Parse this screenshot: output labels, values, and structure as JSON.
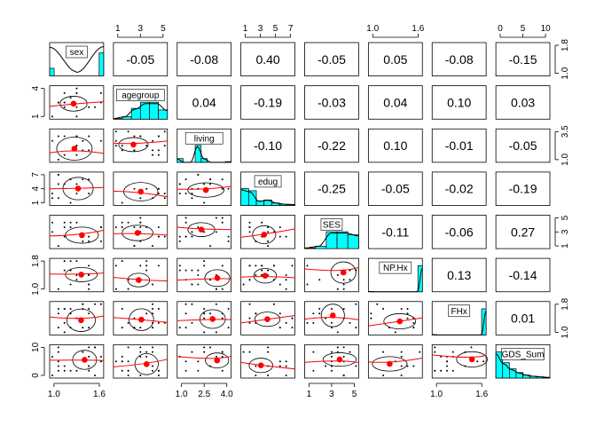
{
  "chart_data": {
    "type": "scatter-matrix",
    "variables": [
      {
        "name": "sex",
        "range": [
          1,
          2
        ],
        "hist": [
          0.25,
          0,
          0,
          0,
          0,
          0,
          0,
          0,
          0,
          0,
          0,
          0.75
        ]
      },
      {
        "name": "agegroup",
        "range": [
          1,
          6
        ],
        "hist": [
          0.02,
          0.08,
          0.35,
          0.55,
          0.55,
          0.3
        ]
      },
      {
        "name": "living",
        "range": [
          1,
          4
        ],
        "hist": [
          0.12,
          0,
          0,
          0.55,
          0.12,
          0,
          0,
          0,
          0.02
        ]
      },
      {
        "name": "edug",
        "range": [
          1,
          7
        ],
        "hist": [
          0.55,
          0.48,
          0.15,
          0.18,
          0.08,
          0.04,
          0.03
        ]
      },
      {
        "name": "SES",
        "range": [
          1,
          5
        ],
        "hist": [
          0.02,
          0.08,
          0.55,
          0.55,
          0.45
        ]
      },
      {
        "name": "NP.Hx",
        "range": [
          1,
          2
        ],
        "hist": [
          0.01,
          0,
          0,
          0,
          0,
          0,
          0,
          0,
          0,
          0,
          0,
          0.85
        ]
      },
      {
        "name": "FHx",
        "range": [
          1,
          2
        ],
        "hist": [
          0.01,
          0,
          0,
          0,
          0,
          0,
          0,
          0,
          0,
          0,
          0,
          0.85
        ]
      },
      {
        "name": "GDS_Sum",
        "range": [
          0,
          15
        ],
        "hist": [
          0.85,
          0.5,
          0.3,
          0.18,
          0.1,
          0.06,
          0.04,
          0.02
        ]
      }
    ],
    "correlations": [
      [
        null,
        -0.05,
        -0.08,
        0.4,
        -0.05,
        0.05,
        -0.08,
        -0.15
      ],
      [
        null,
        null,
        0.04,
        -0.19,
        -0.03,
        0.04,
        0.1,
        0.03
      ],
      [
        null,
        null,
        null,
        -0.1,
        -0.22,
        0.1,
        -0.01,
        -0.05
      ],
      [
        null,
        null,
        null,
        null,
        -0.25,
        -0.05,
        -0.02,
        -0.19
      ],
      [
        null,
        null,
        null,
        null,
        null,
        -0.11,
        -0.06,
        0.27
      ],
      [
        null,
        null,
        null,
        null,
        null,
        null,
        0.13,
        -0.14
      ],
      [
        null,
        null,
        null,
        null,
        null,
        null,
        null,
        0.01
      ]
    ],
    "correlation_labels": [
      [
        "",
        "-0.05",
        "-0.08",
        "0.40",
        "-0.05",
        "0.05",
        "-0.08",
        "-0.15"
      ],
      [
        "",
        "",
        "0.04",
        "-0.19",
        "-0.03",
        "0.04",
        "0.10",
        "0.03"
      ],
      [
        "",
        "",
        "",
        "-0.10",
        "-0.22",
        "0.10",
        "-0.01",
        "-0.05"
      ],
      [
        "",
        "",
        "",
        "",
        "-0.25",
        "-0.05",
        "-0.02",
        "-0.19"
      ],
      [
        "",
        "",
        "",
        "",
        "",
        "-0.11",
        "-0.06",
        "0.27"
      ],
      [
        "",
        "",
        "",
        "",
        "",
        "",
        "0.13",
        "-0.14"
      ],
      [
        "",
        "",
        "",
        "",
        "",
        "",
        "",
        "0.01"
      ]
    ],
    "top_axis_ticks": {
      "agegroup": [
        "1",
        "3",
        "5"
      ],
      "edug": [
        "1",
        "3",
        "5",
        "7"
      ],
      "NP.Hx": [
        "1.0",
        "1.6"
      ],
      "GDS_Sum": [
        "0",
        "5",
        "10"
      ]
    },
    "bottom_axis_ticks": {
      "sex": [
        "1.0",
        "1.6"
      ],
      "living": [
        "1.0",
        "2.5",
        "4.0"
      ],
      "SES": [
        "1",
        "3",
        "5"
      ],
      "FHx": [
        "1.0",
        "1.6"
      ]
    },
    "left_axis_ticks": {
      "agegroup": [
        "1",
        "4"
      ],
      "edug": [
        "1",
        "4",
        "7"
      ],
      "NP.Hx": [
        "1.0",
        "1.8"
      ],
      "GDS_Sum": [
        "0",
        "10"
      ]
    },
    "right_axis_ticks": {
      "sex": [
        "1.0",
        "1.8"
      ],
      "living": [
        "1.0",
        "3.5"
      ],
      "SES": [
        "1",
        "3",
        "5"
      ],
      "FHx": [
        "1.0",
        "1.8"
      ]
    },
    "colors": {
      "histogram": "#00ffff",
      "loess": "#ff0000",
      "mean_point": "#ff0000",
      "points": "#000000"
    }
  }
}
